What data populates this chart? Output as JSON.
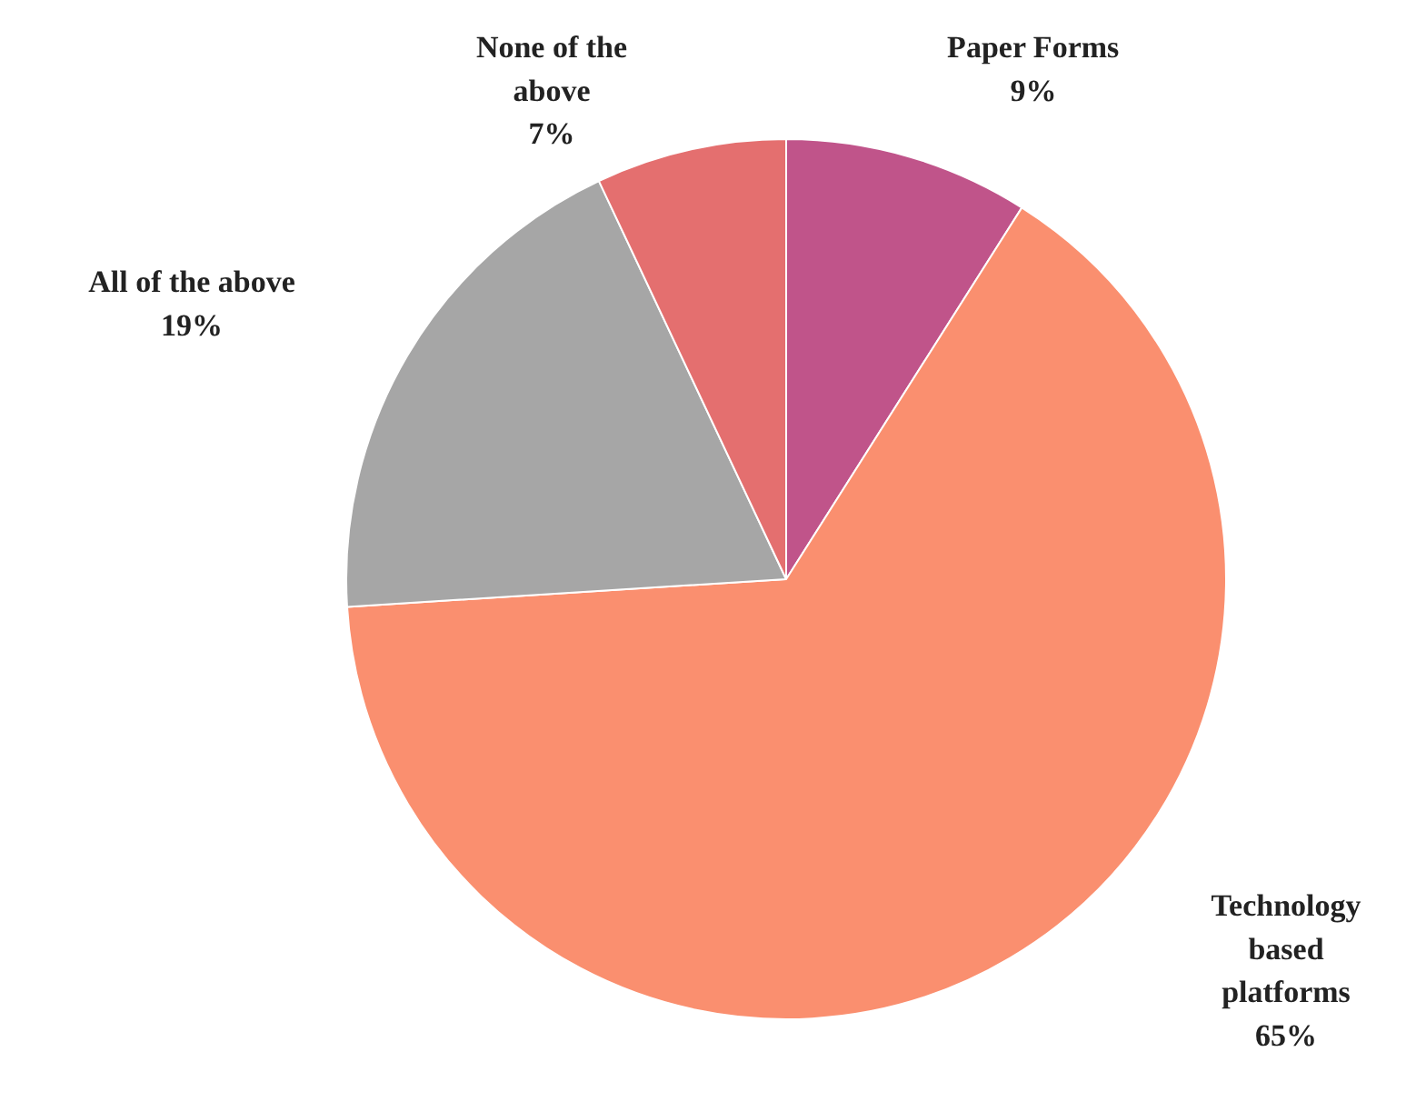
{
  "chart_data": {
    "type": "pie",
    "categories": [
      "Paper Forms",
      "Technology based platforms",
      "All of the above",
      "None of the above"
    ],
    "values": [
      9,
      65,
      19,
      7
    ],
    "value_labels": [
      "9%",
      "65%",
      "19%",
      "7%"
    ],
    "colors": [
      "#c0548a",
      "#fa8f6f",
      "#a6a6a6",
      "#e46f6f"
    ],
    "legend": false
  }
}
